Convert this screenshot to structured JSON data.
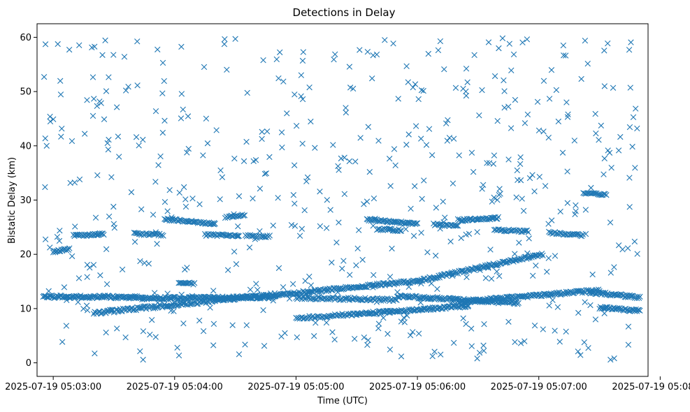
{
  "chart_data": {
    "type": "scatter",
    "title": "Detections in Delay",
    "xlabel": "Time (UTC)",
    "ylabel": "Bistatic Delay (km)",
    "marker": "x",
    "color": "#1f77b4",
    "xlim_seconds": [
      -8,
      294
    ],
    "ylim": [
      -2.5,
      62.5
    ],
    "x_ticks": [
      {
        "t": 0,
        "label": "2025-07-19 05:03:00"
      },
      {
        "t": 60,
        "label": "2025-07-19 05:04:00"
      },
      {
        "t": 120,
        "label": "2025-07-19 05:05:00"
      },
      {
        "t": 180,
        "label": "2025-07-19 05:06:00"
      },
      {
        "t": 240,
        "label": "2025-07-19 05:07:00"
      },
      {
        "t": 300,
        "label": "2025-07-19 05:08:00"
      }
    ],
    "y_ticks": [
      0,
      10,
      20,
      30,
      40,
      50,
      60
    ],
    "tracks": [
      {
        "t0": -5,
        "t1": 45,
        "d0": 12.2,
        "d1": 12.1,
        "step": 0.45,
        "jitter": 0.25
      },
      {
        "t0": 45,
        "t1": 110,
        "d0": 11.9,
        "d1": 12.1,
        "step": 0.45,
        "jitter": 0.25
      },
      {
        "t0": 110,
        "t1": 180,
        "d0": 12.5,
        "d1": 15.1,
        "step": 0.5,
        "jitter": 0.25
      },
      {
        "t0": 180,
        "t1": 242,
        "d0": 15.1,
        "d1": 20.0,
        "step": 0.5,
        "jitter": 0.25
      },
      {
        "t0": 120,
        "t1": 170,
        "d0": 12.0,
        "d1": 11.6,
        "step": 0.6,
        "jitter": 0.25
      },
      {
        "t0": 170,
        "t1": 230,
        "d0": 12.3,
        "d1": 11.0,
        "step": 0.5,
        "jitter": 0.25
      },
      {
        "t0": 200,
        "t1": 270,
        "d0": 11.2,
        "d1": 13.4,
        "step": 0.5,
        "jitter": 0.25
      },
      {
        "t0": 265,
        "t1": 290,
        "d0": 13.0,
        "d1": 12.1,
        "step": 0.5,
        "jitter": 0.25
      },
      {
        "t0": 20,
        "t1": 110,
        "d0": 9.2,
        "d1": 12.6,
        "step": 0.5,
        "jitter": 0.3
      },
      {
        "t0": 120,
        "t1": 150,
        "d0": 8.2,
        "d1": 9.0,
        "step": 0.6,
        "jitter": 0.25
      },
      {
        "t0": 150,
        "t1": 205,
        "d0": 9.0,
        "d1": 10.5,
        "step": 0.5,
        "jitter": 0.25
      },
      {
        "t0": 270,
        "t1": 290,
        "d0": 10.2,
        "d1": 9.6,
        "step": 0.5,
        "jitter": 0.25
      },
      {
        "t0": 10,
        "t1": 25,
        "d0": 23.4,
        "d1": 23.8,
        "step": 0.5,
        "jitter": 0.2
      },
      {
        "t0": 0,
        "t1": 8,
        "d0": 20.5,
        "d1": 21.0,
        "step": 0.5,
        "jitter": 0.2
      },
      {
        "t0": 40,
        "t1": 55,
        "d0": 23.8,
        "d1": 23.6,
        "step": 0.6,
        "jitter": 0.2
      },
      {
        "t0": 55,
        "t1": 80,
        "d0": 26.5,
        "d1": 25.6,
        "step": 0.5,
        "jitter": 0.2
      },
      {
        "t0": 75,
        "t1": 92,
        "d0": 23.6,
        "d1": 23.4,
        "step": 0.6,
        "jitter": 0.2
      },
      {
        "t0": 85,
        "t1": 95,
        "d0": 26.9,
        "d1": 27.3,
        "step": 0.6,
        "jitter": 0.2
      },
      {
        "t0": 95,
        "t1": 107,
        "d0": 23.4,
        "d1": 23.3,
        "step": 0.6,
        "jitter": 0.2
      },
      {
        "t0": 155,
        "t1": 180,
        "d0": 26.4,
        "d1": 25.6,
        "step": 0.5,
        "jitter": 0.2
      },
      {
        "t0": 160,
        "t1": 172,
        "d0": 24.7,
        "d1": 24.4,
        "step": 0.6,
        "jitter": 0.2
      },
      {
        "t0": 188,
        "t1": 200,
        "d0": 25.5,
        "d1": 25.3,
        "step": 0.6,
        "jitter": 0.2
      },
      {
        "t0": 200,
        "t1": 220,
        "d0": 26.3,
        "d1": 26.7,
        "step": 0.5,
        "jitter": 0.2
      },
      {
        "t0": 218,
        "t1": 235,
        "d0": 24.5,
        "d1": 24.2,
        "step": 0.6,
        "jitter": 0.2
      },
      {
        "t0": 245,
        "t1": 262,
        "d0": 24.0,
        "d1": 23.5,
        "step": 0.6,
        "jitter": 0.2
      },
      {
        "t0": 262,
        "t1": 274,
        "d0": 31.3,
        "d1": 31.0,
        "step": 0.6,
        "jitter": 0.2
      },
      {
        "t0": 62,
        "t1": 70,
        "d0": 14.7,
        "d1": 14.6,
        "step": 0.6,
        "jitter": 0.2
      }
    ],
    "scatter_seed": 20250719,
    "scatter_count": 560,
    "scatter_range_seconds": [
      -5,
      290
    ],
    "scatter_range_km": [
      0.5,
      60
    ]
  }
}
